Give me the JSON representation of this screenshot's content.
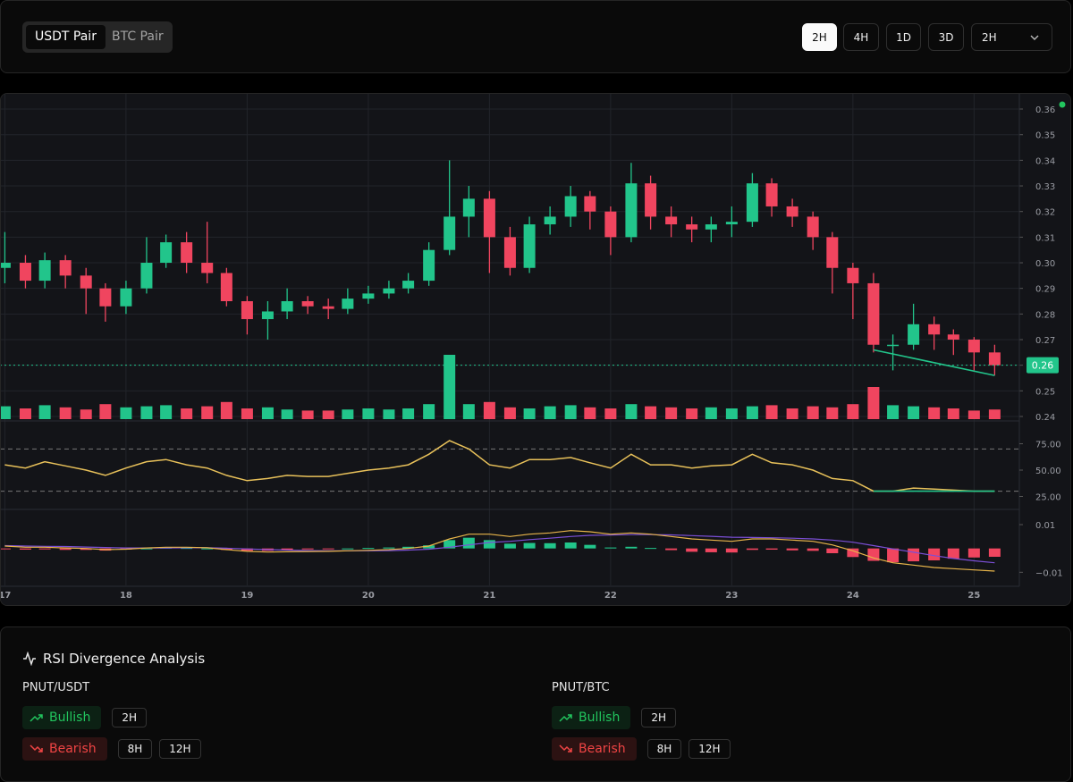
{
  "toolbar": {
    "pair_tabs": [
      "USDT Pair",
      "BTC Pair"
    ],
    "timeframes": [
      "2H",
      "4H",
      "1D",
      "3D"
    ],
    "select": "2H"
  },
  "chart_data": {
    "type": "candlestick",
    "x": [
      17,
      17.17,
      17.33,
      17.5,
      17.67,
      17.83,
      18,
      18.17,
      18.33,
      18.5,
      18.67,
      18.83,
      19,
      19.17,
      19.33,
      19.5,
      19.67,
      19.83,
      20,
      20.17,
      20.33,
      20.5,
      20.67,
      20.83,
      21,
      21.17,
      21.33,
      21.5,
      21.67,
      21.83,
      22,
      22.17,
      22.33,
      22.5,
      22.67,
      22.83,
      23,
      23.17,
      23.33,
      23.5,
      23.67,
      23.83,
      24,
      24.17,
      24.33,
      24.5,
      24.67,
      24.83,
      25,
      25.17
    ],
    "open": [
      0.298,
      0.3,
      0.293,
      0.301,
      0.295,
      0.29,
      0.283,
      0.29,
      0.3,
      0.308,
      0.3,
      0.296,
      0.285,
      0.278,
      0.281,
      0.285,
      0.283,
      0.282,
      0.286,
      0.288,
      0.29,
      0.293,
      0.305,
      0.318,
      0.325,
      0.31,
      0.298,
      0.315,
      0.318,
      0.326,
      0.32,
      0.31,
      0.331,
      0.318,
      0.315,
      0.313,
      0.315,
      0.316,
      0.331,
      0.322,
      0.318,
      0.31,
      0.298,
      0.292,
      0.268,
      0.268,
      0.276,
      0.272,
      0.27,
      0.265
    ],
    "high": [
      0.312,
      0.303,
      0.304,
      0.303,
      0.298,
      0.292,
      0.293,
      0.31,
      0.311,
      0.312,
      0.316,
      0.298,
      0.287,
      0.285,
      0.29,
      0.287,
      0.286,
      0.29,
      0.291,
      0.293,
      0.296,
      0.308,
      0.34,
      0.33,
      0.328,
      0.314,
      0.318,
      0.322,
      0.33,
      0.328,
      0.322,
      0.339,
      0.334,
      0.322,
      0.318,
      0.318,
      0.322,
      0.335,
      0.333,
      0.325,
      0.32,
      0.312,
      0.3,
      0.296,
      0.272,
      0.284,
      0.279,
      0.274,
      0.271,
      0.268
    ],
    "low": [
      0.292,
      0.29,
      0.29,
      0.29,
      0.28,
      0.277,
      0.28,
      0.288,
      0.298,
      0.296,
      0.292,
      0.283,
      0.272,
      0.27,
      0.278,
      0.28,
      0.278,
      0.28,
      0.284,
      0.286,
      0.288,
      0.291,
      0.303,
      0.31,
      0.296,
      0.295,
      0.296,
      0.311,
      0.314,
      0.313,
      0.303,
      0.308,
      0.313,
      0.31,
      0.308,
      0.308,
      0.31,
      0.314,
      0.318,
      0.314,
      0.305,
      0.288,
      0.278,
      0.265,
      0.258,
      0.266,
      0.266,
      0.264,
      0.258,
      0.256
    ],
    "close": [
      0.3,
      0.293,
      0.301,
      0.295,
      0.29,
      0.283,
      0.29,
      0.3,
      0.308,
      0.3,
      0.296,
      0.285,
      0.278,
      0.281,
      0.285,
      0.283,
      0.282,
      0.286,
      0.288,
      0.29,
      0.293,
      0.305,
      0.318,
      0.325,
      0.31,
      0.298,
      0.315,
      0.318,
      0.326,
      0.32,
      0.31,
      0.331,
      0.318,
      0.315,
      0.313,
      0.315,
      0.316,
      0.331,
      0.322,
      0.318,
      0.31,
      0.298,
      0.292,
      0.268,
      0.268,
      0.276,
      0.272,
      0.27,
      0.265,
      0.26
    ],
    "volume": [
      12,
      10,
      13,
      11,
      9,
      14,
      11,
      12,
      13,
      10,
      12,
      16,
      10,
      11,
      9,
      8,
      8,
      9,
      10,
      9,
      10,
      14,
      60,
      14,
      16,
      11,
      10,
      12,
      13,
      11,
      10,
      14,
      12,
      11,
      10,
      11,
      10,
      12,
      13,
      10,
      12,
      11,
      14,
      30,
      13,
      12,
      11,
      10,
      8,
      9
    ],
    "up_color": "#22c58b",
    "down_color": "#f0455f",
    "xlim": [
      16.96,
      25.3
    ],
    "xticks": [
      17,
      18,
      19,
      20,
      21,
      22,
      23,
      24,
      25
    ],
    "ylim": [
      0.2386,
      0.3656
    ],
    "yticks": [
      0.36,
      0.35,
      0.34,
      0.33,
      0.32,
      0.31,
      {
        "value": 0.3,
        "label": "0.30"
      },
      0.29,
      0.28,
      0.27,
      0.26,
      0.25,
      0.24
    ],
    "grid": true,
    "current_price": 0.26,
    "rsi": {
      "values": [
        55,
        52,
        58,
        54,
        50,
        45,
        52,
        58,
        60,
        55,
        52,
        45,
        40,
        42,
        45,
        44,
        44,
        47,
        50,
        52,
        55,
        65,
        78,
        70,
        55,
        52,
        60,
        60,
        62,
        57,
        52,
        65,
        55,
        55,
        52,
        54,
        55,
        65,
        57,
        55,
        50,
        42,
        40,
        30,
        30,
        33,
        32,
        31,
        30,
        30
      ],
      "ylim": [
        14.4,
        95.8
      ],
      "yticks": [
        {
          "value": 75,
          "label": "75.00"
        },
        {
          "value": 50,
          "label": "50.00"
        },
        {
          "value": 25,
          "label": "25.00"
        }
      ],
      "bands": [
        30,
        70
      ],
      "color": "#e8c15a"
    },
    "macd": {
      "macd": [
        0.001,
        0.0005,
        0.0005,
        0.0002,
        0,
        -0.0005,
        -0.0003,
        0.0002,
        0.0005,
        0.0005,
        0.0003,
        -0.0005,
        -0.0012,
        -0.0015,
        -0.0014,
        -0.0013,
        -0.0012,
        -0.001,
        -0.0008,
        -0.0005,
        0,
        0.001,
        0.004,
        0.006,
        0.006,
        0.005,
        0.006,
        0.0065,
        0.0075,
        0.007,
        0.006,
        0.0065,
        0.006,
        0.005,
        0.004,
        0.0035,
        0.003,
        0.004,
        0.004,
        0.0035,
        0.003,
        0.0015,
        -0.001,
        -0.004,
        -0.006,
        -0.007,
        -0.008,
        -0.0085,
        -0.009,
        -0.0095
      ],
      "signal": [
        0.0012,
        0.001,
        0.0009,
        0.0008,
        0.0006,
        0.0004,
        0.0002,
        0.0002,
        0.0002,
        0.0003,
        0.0003,
        0.0001,
        -0.0002,
        -0.0005,
        -0.0007,
        -0.0009,
        -0.001,
        -0.001,
        -0.001,
        -0.0009,
        -0.0007,
        -0.0003,
        0.0005,
        0.0015,
        0.0025,
        0.003,
        0.0037,
        0.0043,
        0.005,
        0.0055,
        0.0056,
        0.0058,
        0.0058,
        0.0057,
        0.0054,
        0.0051,
        0.0047,
        0.0046,
        0.0045,
        0.0043,
        0.004,
        0.0035,
        0.0026,
        0.0012,
        -0.0002,
        -0.0016,
        -0.003,
        -0.0042,
        -0.0052,
        -0.006
      ],
      "histogram": [
        -0.0002,
        -0.0005,
        -0.0004,
        -0.0006,
        -0.0006,
        -0.0009,
        -0.0005,
        0,
        0.0003,
        0.0002,
        0,
        -0.0006,
        -0.001,
        -0.001,
        -0.0007,
        -0.0004,
        -0.0002,
        0,
        0.0002,
        0.0004,
        0.0007,
        0.0013,
        0.0035,
        0.0045,
        0.0035,
        0.002,
        0.0023,
        0.0022,
        0.0025,
        0.0015,
        0.0004,
        0.0007,
        0.0002,
        -0.0007,
        -0.0014,
        -0.0016,
        -0.0017,
        -0.0006,
        -0.0005,
        -0.0008,
        -0.001,
        -0.002,
        -0.0036,
        -0.0052,
        -0.0058,
        -0.0054,
        -0.005,
        -0.0043,
        -0.0038,
        -0.0035
      ],
      "ylim": [
        -0.0155,
        0.0145
      ],
      "yticks": [
        0.01,
        {
          "value": -0.01,
          "label": "−0.01"
        }
      ],
      "macd_color": "#e8b54a",
      "signal_color": "#7b4fd6"
    },
    "divergence": {
      "color": "#22c58b",
      "price": {
        "x": [
          24.17,
          25.17
        ],
        "values": [
          0.266,
          0.256
        ]
      },
      "rsi": {
        "x": [
          24.17,
          25.17
        ],
        "values": [
          30,
          30
        ]
      }
    }
  },
  "analysis": {
    "title": "RSI Divergence Analysis",
    "pairs": [
      {
        "name": "PNUT/USDT",
        "bullish": {
          "label": "Bullish",
          "timeframes": [
            "2H"
          ]
        },
        "bearish": {
          "label": "Bearish",
          "timeframes": [
            "8H",
            "12H"
          ]
        }
      },
      {
        "name": "PNUT/BTC",
        "bullish": {
          "label": "Bullish",
          "timeframes": [
            "2H"
          ]
        },
        "bearish": {
          "label": "Bearish",
          "timeframes": [
            "8H",
            "12H"
          ]
        }
      }
    ]
  }
}
